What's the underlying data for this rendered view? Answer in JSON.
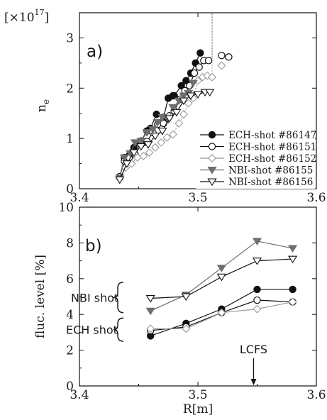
{
  "chart_data": [
    {
      "type": "line",
      "panel_label": "a)",
      "xlabel": "",
      "ylabel": "n_e",
      "ylabel_main": "n",
      "ylabel_sub": "e",
      "scale_label": "[×10",
      "scale_exp": "17",
      "scale_close": "]",
      "xlim": [
        3.4,
        3.6
      ],
      "ylim": [
        0,
        3.5
      ],
      "xticks": [
        3.4,
        3.5,
        3.6
      ],
      "xtick_labels": [
        "3.4",
        "3.5",
        "3.6"
      ],
      "yticks": [
        0,
        1,
        2,
        3
      ],
      "ytick_labels": [
        "0",
        "1",
        "2",
        "3"
      ],
      "legend_position": "lower-right",
      "series": [
        {
          "name": "ECH-shot #86147",
          "marker": "circle-filled",
          "color": "#111111",
          "x": [
            3.434,
            3.438,
            3.442,
            3.446,
            3.452,
            3.457,
            3.46,
            3.465,
            3.471,
            3.475,
            3.479,
            3.48,
            3.486,
            3.49,
            3.494,
            3.498,
            3.502
          ],
          "y": [
            0.24,
            0.62,
            0.66,
            0.82,
            0.95,
            1.15,
            1.2,
            1.48,
            1.42,
            1.8,
            1.85,
            1.85,
            2.05,
            2.15,
            2.3,
            2.5,
            2.7
          ]
        },
        {
          "name": "ECH-shot #86151",
          "marker": "circle-open",
          "color": "#111111",
          "x": [
            3.434,
            3.438,
            3.442,
            3.447,
            3.452,
            3.457,
            3.462,
            3.466,
            3.471,
            3.476,
            3.48,
            3.485,
            3.489,
            3.493,
            3.497,
            3.501,
            3.505,
            3.509
          ],
          "y": [
            0.24,
            0.55,
            0.62,
            0.68,
            0.88,
            0.94,
            1.12,
            1.28,
            1.3,
            1.45,
            1.55,
            1.78,
            1.95,
            2.05,
            2.3,
            2.42,
            2.55,
            2.55
          ],
          "tail_line": [
            [
              3.512,
              2.55
            ],
            [
              3.512,
              3.5
            ]
          ],
          "extra_points": [
            [
              3.52,
              2.65
            ],
            [
              3.526,
              2.62
            ]
          ]
        },
        {
          "name": "ECH-shot #86152",
          "marker": "diamond-open",
          "color": "#9a9a9a",
          "x": [
            3.434,
            3.439,
            3.444,
            3.449,
            3.454,
            3.459,
            3.464,
            3.469,
            3.474,
            3.479,
            3.484,
            3.488,
            3.492,
            3.496,
            3.5,
            3.504,
            3.508,
            3.512
          ],
          "y": [
            0.2,
            0.42,
            0.5,
            0.62,
            0.65,
            0.72,
            0.82,
            0.92,
            1.02,
            1.08,
            1.3,
            1.48,
            1.7,
            1.8,
            2.15,
            2.22,
            2.25,
            2.22
          ],
          "tail_line": [
            [
              3.512,
              2.22
            ],
            [
              3.512,
              3.5
            ]
          ],
          "extra_points": [
            [
              3.52,
              2.45
            ]
          ]
        },
        {
          "name": "NBI-shot #86155",
          "marker": "triangle-down-filled",
          "color": "#6e6e6e",
          "x": [
            3.434,
            3.438,
            3.443,
            3.447,
            3.452,
            3.457,
            3.462,
            3.466,
            3.47,
            3.475,
            3.479,
            3.484,
            3.488,
            3.492,
            3.496
          ],
          "y": [
            0.22,
            0.62,
            0.7,
            0.92,
            0.95,
            1.12,
            1.18,
            1.32,
            1.42,
            1.38,
            1.62,
            1.75,
            1.85,
            1.9,
            2.1
          ]
        },
        {
          "name": "NBI-shot #86156",
          "marker": "triangle-down-open",
          "color": "#111111",
          "x": [
            3.434,
            3.44,
            3.446,
            3.452,
            3.458,
            3.464,
            3.47,
            3.476,
            3.482,
            3.488,
            3.494,
            3.5,
            3.506,
            3.51
          ],
          "y": [
            0.18,
            0.5,
            0.72,
            0.84,
            0.88,
            1.05,
            1.15,
            1.4,
            1.52,
            1.75,
            1.85,
            1.88,
            1.92,
            1.92
          ]
        }
      ]
    },
    {
      "type": "line",
      "panel_label": "b)",
      "xlabel": "R[m]",
      "ylabel": "fluc. level [%]",
      "xlim": [
        3.4,
        3.6
      ],
      "ylim": [
        0,
        10
      ],
      "xticks": [
        3.4,
        3.5,
        3.6
      ],
      "xtick_labels": [
        "3.4",
        "3.5",
        "3.6"
      ],
      "yticks": [
        0,
        2,
        4,
        6,
        8,
        10
      ],
      "ytick_labels": [
        "0",
        "2",
        "4",
        "6",
        "8",
        "10"
      ],
      "annotations": [
        {
          "text": "NBI shot",
          "group_range": [
            4.1,
            5.8
          ]
        },
        {
          "text": "ECH shot",
          "group_range": [
            2.5,
            3.8
          ]
        },
        {
          "text": "LCFS",
          "arrow_x": 3.547
        }
      ],
      "series": [
        {
          "name": "ECH-shot #86147",
          "marker": "circle-filled",
          "color": "#111111",
          "x": [
            3.46,
            3.49,
            3.52,
            3.55,
            3.58
          ],
          "y": [
            2.8,
            3.5,
            4.3,
            5.4,
            5.4
          ]
        },
        {
          "name": "ECH-shot #86151",
          "marker": "circle-open",
          "color": "#111111",
          "x": [
            3.46,
            3.49,
            3.52,
            3.55,
            3.58
          ],
          "y": [
            3.1,
            3.3,
            4.1,
            4.8,
            4.7
          ]
        },
        {
          "name": "ECH-shot #86152",
          "marker": "diamond-open",
          "color": "#9a9a9a",
          "x": [
            3.46,
            3.49,
            3.52,
            3.55,
            3.58
          ],
          "y": [
            3.2,
            3.2,
            4.1,
            4.3,
            4.7
          ]
        },
        {
          "name": "NBI-shot #86155",
          "marker": "triangle-down-filled",
          "color": "#6e6e6e",
          "x": [
            3.46,
            3.49,
            3.52,
            3.55,
            3.58
          ],
          "y": [
            4.2,
            5.1,
            6.6,
            8.1,
            7.7
          ]
        },
        {
          "name": "NBI-shot #86156",
          "marker": "triangle-down-open",
          "color": "#111111",
          "x": [
            3.46,
            3.49,
            3.52,
            3.55,
            3.58
          ],
          "y": [
            4.9,
            5.0,
            6.1,
            7.0,
            7.1
          ]
        }
      ]
    }
  ]
}
